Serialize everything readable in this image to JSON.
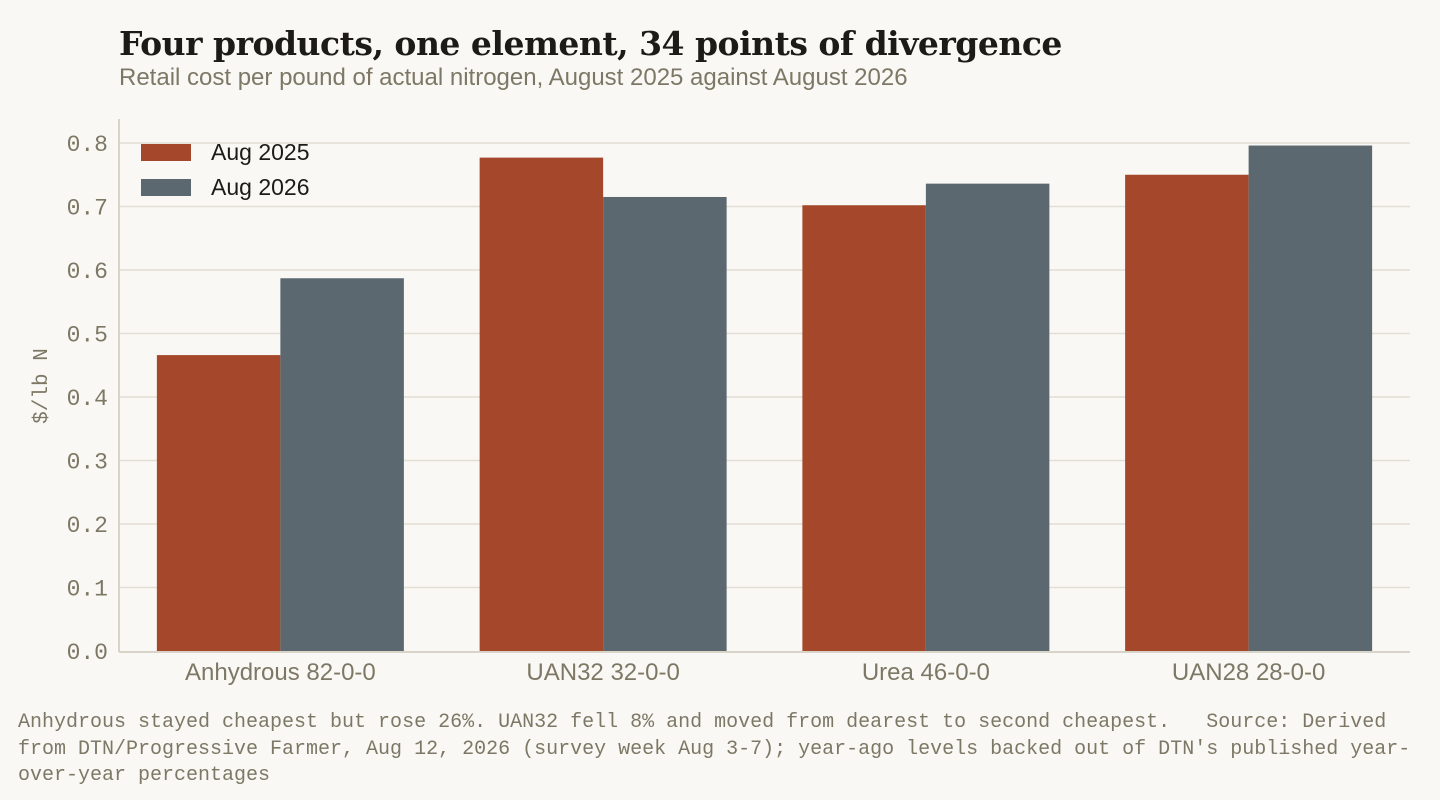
{
  "title": "Four products, one element, 34 points of divergence",
  "subtitle": "Retail cost per pound of actual nitrogen, August 2025 against August 2026",
  "footnote": "Anhydrous stayed cheapest but rose 26%. UAN32 fell 8% and moved from dearest to second cheapest.   Source: Derived from DTN/Progressive Farmer, Aug 12, 2026 (survey week Aug 3-7); year-ago levels backed out of DTN's published year-over-year percentages",
  "chart_data": {
    "type": "bar",
    "title": "Four products, one element, 34 points of divergence",
    "subtitle": "Retail cost per pound of actual nitrogen, August 2025 against August 2026",
    "xlabel": "",
    "ylabel": "$/lb N",
    "categories": [
      "Anhydrous 82-0-0",
      "UAN32 32-0-0",
      "Urea 46-0-0",
      "UAN28 28-0-0"
    ],
    "series": [
      {
        "name": "Aug 2025",
        "color": "#a4472a",
        "values": [
          0.466,
          0.777,
          0.702,
          0.75
        ]
      },
      {
        "name": "Aug 2026",
        "color": "#5b6870",
        "values": [
          0.587,
          0.715,
          0.736,
          0.796
        ]
      }
    ],
    "ylim": [
      0,
      0.8
    ],
    "yticks": [
      "0.0",
      "0.1",
      "0.2",
      "0.3",
      "0.4",
      "0.5",
      "0.6",
      "0.7",
      "0.8"
    ],
    "grid": true,
    "legend_position": "top-left"
  }
}
